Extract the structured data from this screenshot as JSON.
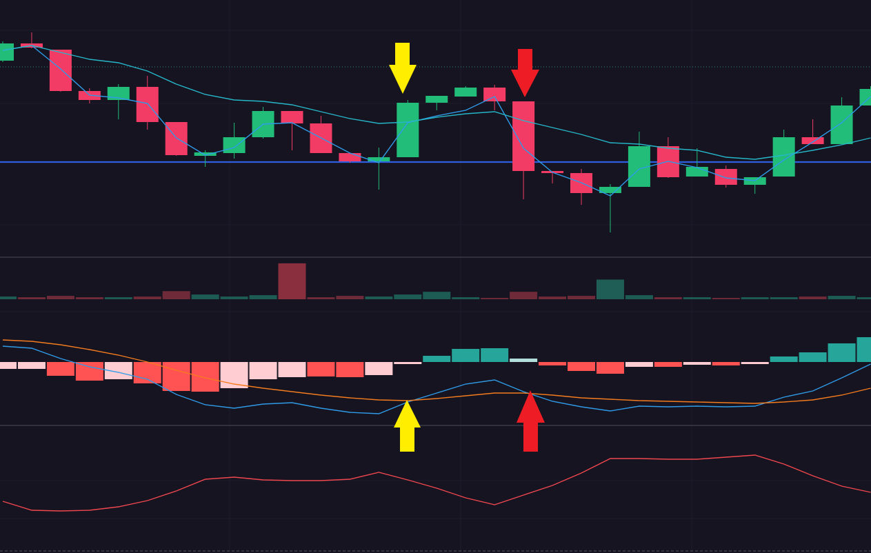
{
  "chart_data": [
    {
      "type": "candlestick",
      "open": [
        284,
        309,
        300,
        240,
        227,
        246,
        195,
        146,
        150,
        173,
        211,
        193,
        150,
        138,
        144,
        223,
        232,
        245,
        225,
        124,
        121,
        92,
        101,
        160,
        116,
        127,
        104,
        116,
        173,
        163,
        219
      ],
      "high": [
        312,
        325,
        300,
        244,
        250,
        262,
        195,
        154,
        194,
        217,
        211,
        204,
        150,
        158,
        227,
        233,
        247,
        249,
        225,
        124,
        127,
        105,
        181,
        173,
        157,
        132,
        115,
        184,
        199,
        231,
        247
      ],
      "low": [
        282,
        302,
        239,
        222,
        199,
        184,
        146,
        130,
        142,
        171,
        154,
        150,
        136,
        97,
        144,
        212,
        232,
        212,
        83,
        106,
        75,
        35,
        101,
        114,
        116,
        100,
        91,
        116,
        163,
        163,
        219
      ],
      "close": [
        309,
        303,
        240,
        227,
        246,
        195,
        147,
        151,
        173,
        211,
        193,
        150,
        138,
        144,
        223,
        233,
        245,
        225,
        124,
        121,
        92,
        101,
        160,
        115,
        130,
        104,
        115,
        173,
        163,
        219,
        243
      ],
      "up_color": "#22bd78",
      "down_color": "#f23b65",
      "ylim": [
        0,
        372
      ],
      "series": [
        {
          "color": "#2f9be8",
          "values": [
            299,
            306,
            272,
            234,
            230,
            222,
            172,
            147,
            158,
            192,
            194,
            172,
            150,
            136,
            194,
            204,
            212,
            232,
            157,
            122,
            107,
            88,
            127,
            138,
            129,
            114,
            110,
            140,
            166,
            194,
            232
          ]
        },
        {
          "color": "#26b6c9",
          "values": [
            299,
            306,
            296,
            286,
            281,
            269,
            250,
            235,
            227,
            225,
            220,
            210,
            200,
            193,
            195,
            202,
            207,
            210,
            197,
            187,
            177,
            165,
            163,
            157,
            154,
            144,
            141,
            147,
            154,
            162,
            172
          ]
        }
      ],
      "hlines": [
        {
          "value": 137,
          "color": "#2f5fe0",
          "style": "solid"
        },
        {
          "value": 275,
          "color": "#2a8f8f",
          "style": "dotted"
        }
      ]
    },
    {
      "type": "bar",
      "values": [
        4,
        3,
        5,
        3,
        3,
        4,
        12,
        7,
        4,
        6,
        53,
        3,
        5,
        4,
        7,
        11,
        3,
        2,
        11,
        4,
        5,
        29,
        6,
        3,
        3,
        2,
        3,
        3,
        4,
        5,
        3
      ],
      "colors": [
        "#1d5c54",
        "#6e2a38",
        "#6e2a38",
        "#6e2a38",
        "#1d5c54",
        "#6e2a38",
        "#6e2a38",
        "#1d5c54",
        "#1d5c54",
        "#1d5c54",
        "#8a2f3e",
        "#6e2a38",
        "#6e2a38",
        "#1d5c54",
        "#1d5c54",
        "#1d5c54",
        "#1d5c54",
        "#6e2a38",
        "#6e2a38",
        "#6e2a38",
        "#6e2a38",
        "#1e5e56",
        "#1d5c54",
        "#6e2a38",
        "#1d5c54",
        "#6e2a38",
        "#1d5c54",
        "#1d5c54",
        "#6e2a38",
        "#1d5c54",
        "#1d5c54"
      ],
      "ylim": [
        0,
        60
      ]
    },
    {
      "type": "macd",
      "histogram": {
        "values": [
          -10,
          -10,
          -20,
          -27,
          -25,
          -31,
          -42,
          -43,
          -38,
          -25,
          -22,
          -21,
          -22,
          -19,
          -3,
          9,
          19,
          20,
          5,
          -5,
          -13,
          -17,
          -7,
          -7,
          -4,
          -5,
          -3,
          8,
          14,
          27,
          36
        ],
        "colors": [
          "#ffcdd2",
          "#ffcdd2",
          "#ff5252",
          "#ff5252",
          "#ffcdd2",
          "#ff5252",
          "#ff5252",
          "#ff5252",
          "#ffcdd2",
          "#ffcdd2",
          "#ffcdd2",
          "#ff5252",
          "#ff5252",
          "#ffcdd2",
          "#ffcdd2",
          "#26a69a",
          "#26a69a",
          "#26a69a",
          "#b2dfdb",
          "#ff5252",
          "#ff5252",
          "#ff5252",
          "#ffcdd2",
          "#ff5252",
          "#ffcdd2",
          "#ff5252",
          "#ffcdd2",
          "#26a69a",
          "#26a69a",
          "#26a69a",
          "#26a69a"
        ]
      },
      "series": [
        {
          "color": "#2f9be8",
          "values": [
            23,
            20,
            5,
            -7,
            -15,
            -25,
            -47,
            -62,
            -67,
            -61,
            -59,
            -67,
            -73,
            -75,
            -58,
            -45,
            -32,
            -26,
            -43,
            -57,
            -65,
            -71,
            -64,
            -65,
            -64,
            -65,
            -64,
            -51,
            -42,
            -23,
            -3
          ]
        },
        {
          "color": "#f57c1f",
          "values": [
            32,
            30,
            25,
            18,
            10,
            0,
            -12,
            -23,
            -32,
            -38,
            -43,
            -48,
            -52,
            -55,
            -56,
            -53,
            -49,
            -45,
            -45,
            -48,
            -52,
            -54,
            -56,
            -57,
            -58,
            -59,
            -60,
            -58,
            -55,
            -48,
            -38
          ]
        }
      ],
      "ylim": [
        -92,
        150
      ]
    },
    {
      "type": "line",
      "series": [
        {
          "color": "#f0474f",
          "values": [
            73,
            60,
            59,
            60,
            65,
            74,
            88,
            105,
            108,
            104,
            103,
            103,
            105,
            115,
            104,
            92,
            78,
            68,
            82,
            96,
            114,
            135,
            135,
            134,
            134,
            137,
            140,
            127,
            110,
            95,
            86
          ]
        }
      ],
      "ylim": [
        0,
        182
      ]
    }
  ]
}
